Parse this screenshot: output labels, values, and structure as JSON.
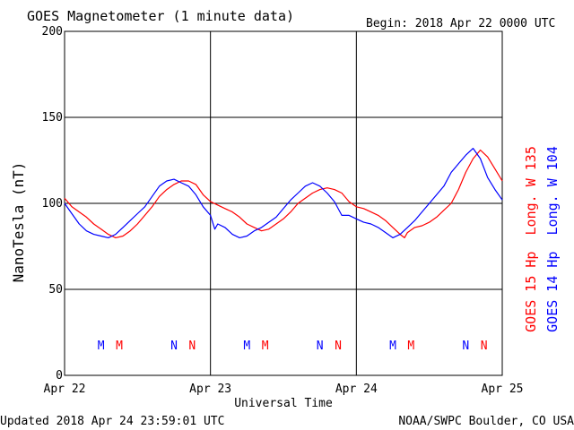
{
  "header": {
    "title": "GOES Magnetometer (1 minute data)",
    "begin": "Begin:  2018 Apr 22 0000 UTC"
  },
  "footer": {
    "updated": "Updated 2018 Apr 24 23:59:01 UTC",
    "credit": "NOAA/SWPC Boulder, CO USA"
  },
  "colors": {
    "goes15": "#ff0000",
    "goes14": "#0000ff",
    "grid": "#000000",
    "background": "#ffffff"
  },
  "chart_data": {
    "type": "line",
    "title": "GOES Magnetometer (1 minute data)",
    "xlabel": "Universal Time",
    "ylabel": "NanoTesla (nT)",
    "xlim": [
      "2018-04-22 00:00",
      "2018-04-25 00:00"
    ],
    "ylim": [
      0,
      200
    ],
    "yticks": [
      0,
      50,
      100,
      150,
      200
    ],
    "xticks": [
      {
        "day": 0,
        "label": "Apr 22"
      },
      {
        "day": 1,
        "label": "Apr 23"
      },
      {
        "day": 2,
        "label": "Apr 24"
      },
      {
        "day": 3,
        "label": "Apr 25"
      }
    ],
    "grid": true,
    "series": [
      {
        "name": "GOES 15 Hp  Long. W 135",
        "color": "#ff0000",
        "points": [
          [
            0,
            103
          ],
          [
            0.05,
            98
          ],
          [
            0.1,
            95
          ],
          [
            0.15,
            92
          ],
          [
            0.2,
            88
          ],
          [
            0.25,
            85
          ],
          [
            0.3,
            82
          ],
          [
            0.35,
            80
          ],
          [
            0.4,
            81
          ],
          [
            0.45,
            84
          ],
          [
            0.5,
            88
          ],
          [
            0.55,
            93
          ],
          [
            0.6,
            98
          ],
          [
            0.65,
            104
          ],
          [
            0.7,
            108
          ],
          [
            0.75,
            111
          ],
          [
            0.8,
            113
          ],
          [
            0.85,
            113
          ],
          [
            0.9,
            111
          ],
          [
            0.95,
            105
          ],
          [
            1.0,
            101
          ],
          [
            1.05,
            99
          ],
          [
            1.1,
            97
          ],
          [
            1.15,
            95
          ],
          [
            1.2,
            92
          ],
          [
            1.25,
            88
          ],
          [
            1.3,
            86
          ],
          [
            1.35,
            84
          ],
          [
            1.4,
            85
          ],
          [
            1.45,
            88
          ],
          [
            1.5,
            91
          ],
          [
            1.55,
            95
          ],
          [
            1.6,
            100
          ],
          [
            1.65,
            103
          ],
          [
            1.7,
            106
          ],
          [
            1.75,
            108
          ],
          [
            1.8,
            109
          ],
          [
            1.85,
            108
          ],
          [
            1.9,
            106
          ],
          [
            1.95,
            101
          ],
          [
            2.0,
            98
          ],
          [
            2.05,
            97
          ],
          [
            2.1,
            95
          ],
          [
            2.15,
            93
          ],
          [
            2.2,
            90
          ],
          [
            2.25,
            86
          ],
          [
            2.3,
            82
          ],
          [
            2.33,
            80
          ],
          [
            2.35,
            83
          ],
          [
            2.4,
            86
          ],
          [
            2.45,
            87
          ],
          [
            2.5,
            89
          ],
          [
            2.55,
            92
          ],
          [
            2.6,
            96
          ],
          [
            2.65,
            100
          ],
          [
            2.7,
            108
          ],
          [
            2.75,
            118
          ],
          [
            2.8,
            126
          ],
          [
            2.85,
            131
          ],
          [
            2.9,
            127
          ],
          [
            2.95,
            120
          ],
          [
            3.0,
            113
          ]
        ]
      },
      {
        "name": "GOES 14 Hp  Long. W 104",
        "color": "#0000ff",
        "points": [
          [
            0,
            100
          ],
          [
            0.05,
            94
          ],
          [
            0.1,
            88
          ],
          [
            0.15,
            84
          ],
          [
            0.2,
            82
          ],
          [
            0.25,
            81
          ],
          [
            0.3,
            80
          ],
          [
            0.35,
            82
          ],
          [
            0.4,
            86
          ],
          [
            0.45,
            90
          ],
          [
            0.5,
            94
          ],
          [
            0.55,
            98
          ],
          [
            0.6,
            104
          ],
          [
            0.65,
            110
          ],
          [
            0.7,
            113
          ],
          [
            0.75,
            114
          ],
          [
            0.8,
            112
          ],
          [
            0.85,
            110
          ],
          [
            0.9,
            105
          ],
          [
            0.95,
            98
          ],
          [
            1.0,
            93
          ],
          [
            1.03,
            85
          ],
          [
            1.05,
            88
          ],
          [
            1.1,
            86
          ],
          [
            1.15,
            82
          ],
          [
            1.2,
            80
          ],
          [
            1.25,
            81
          ],
          [
            1.3,
            84
          ],
          [
            1.35,
            86
          ],
          [
            1.4,
            89
          ],
          [
            1.45,
            92
          ],
          [
            1.5,
            97
          ],
          [
            1.55,
            102
          ],
          [
            1.6,
            106
          ],
          [
            1.65,
            110
          ],
          [
            1.7,
            112
          ],
          [
            1.75,
            110
          ],
          [
            1.8,
            106
          ],
          [
            1.85,
            101
          ],
          [
            1.9,
            93
          ],
          [
            1.95,
            93
          ],
          [
            2.0,
            91
          ],
          [
            2.05,
            89
          ],
          [
            2.1,
            88
          ],
          [
            2.15,
            86
          ],
          [
            2.2,
            83
          ],
          [
            2.25,
            80
          ],
          [
            2.3,
            82
          ],
          [
            2.35,
            86
          ],
          [
            2.4,
            90
          ],
          [
            2.45,
            95
          ],
          [
            2.5,
            100
          ],
          [
            2.55,
            105
          ],
          [
            2.6,
            110
          ],
          [
            2.65,
            118
          ],
          [
            2.7,
            123
          ],
          [
            2.75,
            128
          ],
          [
            2.8,
            132
          ],
          [
            2.85,
            126
          ],
          [
            2.9,
            115
          ],
          [
            2.95,
            108
          ],
          [
            3.0,
            102
          ]
        ]
      }
    ],
    "markers": [
      {
        "label": "M",
        "day": 0.25,
        "color": "#0000ff"
      },
      {
        "label": "M",
        "day": 0.375,
        "color": "#ff0000"
      },
      {
        "label": "N",
        "day": 0.75,
        "color": "#0000ff"
      },
      {
        "label": "N",
        "day": 0.875,
        "color": "#ff0000"
      },
      {
        "label": "M",
        "day": 1.25,
        "color": "#0000ff"
      },
      {
        "label": "M",
        "day": 1.375,
        "color": "#ff0000"
      },
      {
        "label": "N",
        "day": 1.75,
        "color": "#0000ff"
      },
      {
        "label": "N",
        "day": 1.875,
        "color": "#ff0000"
      },
      {
        "label": "M",
        "day": 2.25,
        "color": "#0000ff"
      },
      {
        "label": "M",
        "day": 2.375,
        "color": "#ff0000"
      },
      {
        "label": "N",
        "day": 2.75,
        "color": "#0000ff"
      },
      {
        "label": "N",
        "day": 2.875,
        "color": "#ff0000"
      }
    ]
  }
}
